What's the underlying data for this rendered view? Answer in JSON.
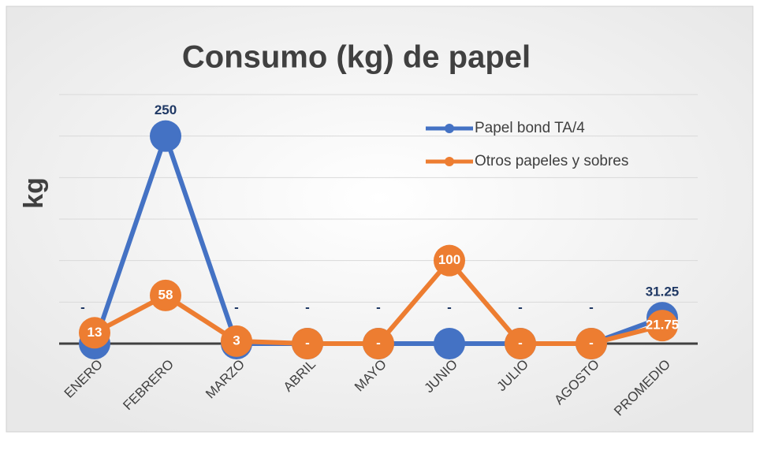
{
  "chart_data": {
    "type": "line",
    "title": "Consumo (kg) de papel",
    "y_label": "kg",
    "categories": [
      "ENERO",
      "FEBRERO",
      "MARZO",
      "ABRIL",
      "MAYO",
      "JUNIO",
      "JULIO",
      "AGOSTO",
      "PROMEDIO"
    ],
    "series": [
      {
        "name": "Papel bond TA/4",
        "color": "#4472c4",
        "values": [
          0,
          250,
          0,
          0,
          0,
          0,
          0,
          0,
          31.25
        ],
        "value_labels": [
          "-",
          "250",
          "-",
          "-",
          "-",
          "-",
          "-",
          "-",
          "31.25"
        ]
      },
      {
        "name": "Otros papeles y sobres",
        "color": "#ed7d31",
        "values": [
          13,
          58,
          3,
          0,
          0,
          100,
          0,
          0,
          21.75
        ],
        "value_labels": [
          "13",
          "58",
          "3",
          "-",
          "-",
          "100",
          "-",
          "-",
          "21.75"
        ]
      }
    ],
    "ylim": [
      0,
      300
    ],
    "yticks": [
      0,
      50,
      100,
      150,
      200,
      250,
      300
    ],
    "grid": true,
    "legend": "upper right"
  }
}
